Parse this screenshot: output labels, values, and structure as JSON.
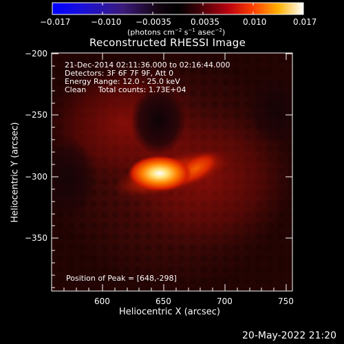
{
  "colorbar": {
    "ticks": [
      "−0.017",
      "−0.010",
      "−0.0035",
      "0.0035",
      "0.010",
      "0.017"
    ],
    "units_prefix": "(photons cm",
    "units_exp1": "−2",
    "units_mid1": " s",
    "units_exp2": "−1",
    "units_mid2": " asec",
    "units_exp3": "−2",
    "units_suffix": ")"
  },
  "plot": {
    "title": "Reconstructed RHESSI Image",
    "xlabel": "Heliocentric X (arcsec)",
    "ylabel": "Heliocentric Y (arcsec)",
    "xticks": [
      "600",
      "650",
      "700",
      "750"
    ],
    "yticks": [
      "−200",
      "−250",
      "−300",
      "−350"
    ]
  },
  "annotations": {
    "time_range": "21-Dec-2014 02:11:36.000 to 02:16:44.000",
    "detectors": "Detectors: 3F 6F 7F 9F, Att 0",
    "energy": "Energy Range: 12.0 - 25.0 keV",
    "method": "Clean     Total counts: 1.73E+04",
    "peak": "Position of Peak = [648,-298]"
  },
  "footer": {
    "timestamp": "20-May-2022 21:20"
  },
  "colors": {
    "background": "#000000",
    "axis": "#ffffff"
  }
}
